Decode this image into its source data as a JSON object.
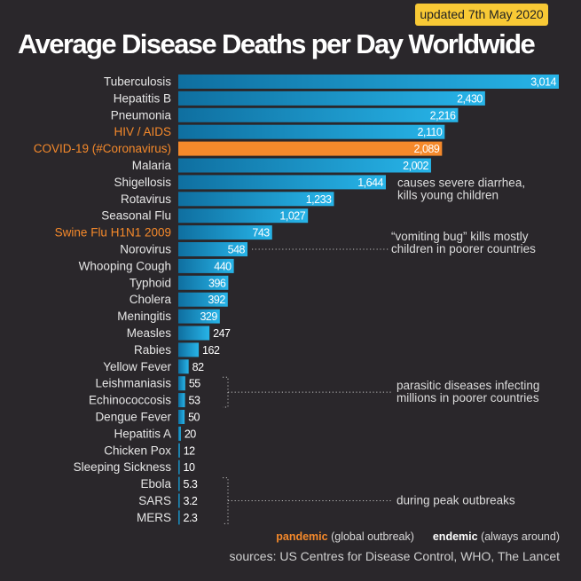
{
  "badge": "updated 7th May 2020",
  "chart_data": {
    "type": "bar",
    "orientation": "horizontal",
    "title": "Average Disease Deaths per Day Worldwide",
    "categories": [
      "Tuberculosis",
      "Hepatitis B",
      "Pneumonia",
      "HIV / AIDS",
      "COVID-19 (#Coronavirus)",
      "Malaria",
      "Shigellosis",
      "Rotavirus",
      "Seasonal Flu",
      "Swine Flu H1N1 2009",
      "Norovirus",
      "Whooping Cough",
      "Typhoid",
      "Cholera",
      "Meningitis",
      "Measles",
      "Rabies",
      "Yellow Fever",
      "Leishmaniasis",
      "Echinococcosis",
      "Dengue Fever",
      "Hepatitis A",
      "Chicken Pox",
      "Sleeping Sickness",
      "Ebola",
      "SARS",
      "MERS"
    ],
    "values": [
      3014,
      2430,
      2216,
      2110,
      2089,
      2002,
      1644,
      1233,
      1027,
      743,
      548,
      440,
      396,
      392,
      329,
      247,
      162,
      82,
      55,
      53,
      50,
      20,
      12,
      10,
      5.3,
      3.2,
      2.3
    ],
    "value_labels": [
      "3,014",
      "2,430",
      "2,216",
      "2,110",
      "2,089",
      "2,002",
      "1,644",
      "1,233",
      "1,027",
      "743",
      "548",
      "440",
      "396",
      "392",
      "329",
      "247",
      "162",
      "82",
      "55",
      "53",
      "50",
      "20",
      "12",
      "10",
      "5.3",
      "3.2",
      "2.3"
    ],
    "pandemic": [
      "HIV / AIDS",
      "COVID-19 (#Coronavirus)",
      "Swine Flu H1N1 2009"
    ],
    "highlight": "COVID-19 (#Coronavirus)",
    "xlim": [
      0,
      3014
    ],
    "annotations": [
      {
        "lines": [
          "causes severe diarrhea,",
          "kills young children"
        ],
        "target": "Shigellosis"
      },
      {
        "lines": [
          "“vomiting bug” kills mostly",
          "children in poorer countries"
        ],
        "target": "Norovirus"
      },
      {
        "lines": [
          "parasitic diseases infecting",
          "millions in poorer countries"
        ],
        "targets": [
          "Leishmaniasis",
          "Echinococcosis",
          "Dengue Fever"
        ]
      },
      {
        "lines": [
          "during peak outbreaks"
        ],
        "targets": [
          "Ebola",
          "SARS",
          "MERS"
        ]
      }
    ]
  },
  "colors": {
    "bar_start": "#0f6fa0",
    "bar_end": "#27b4e8",
    "highlight": "#f5892b",
    "pandemic_label": "#f5892b"
  },
  "legend": {
    "pandemic": "pandemic",
    "pandemic_desc": "(global outbreak)",
    "endemic": "endemic",
    "endemic_desc": "(always around)"
  },
  "sources": "sources: US Centres for Disease Control, WHO, The Lancet"
}
